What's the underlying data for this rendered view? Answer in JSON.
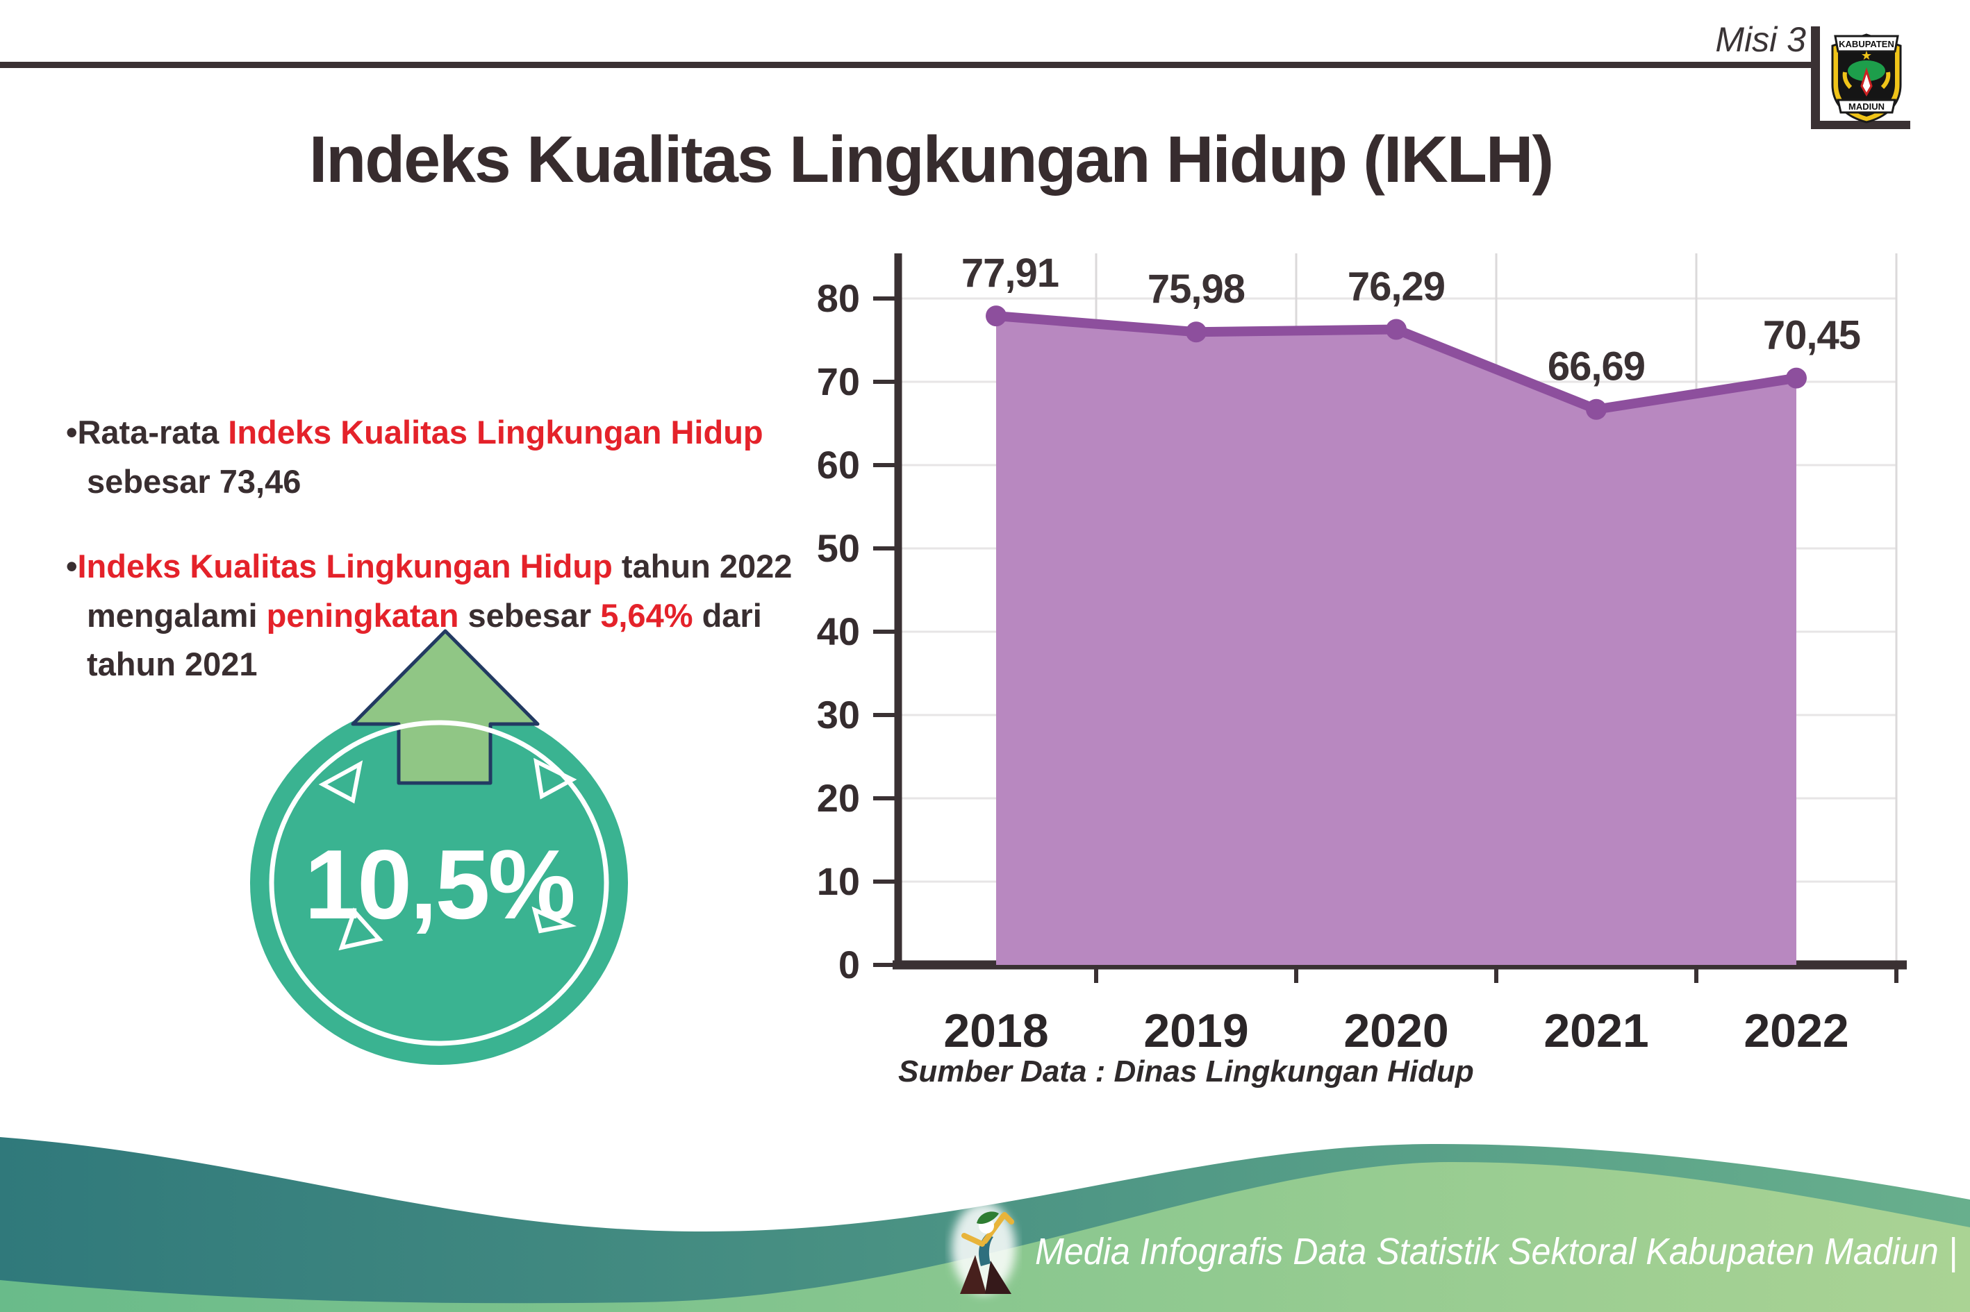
{
  "header": {
    "misi": "Misi 3",
    "title": "Indeks Kualitas Lingkungan Hidup (IKLH)",
    "logo_top": "KABUPATEN",
    "logo_bottom": "MADIUN"
  },
  "bullets": {
    "b1": {
      "p1": "Rata-rata ",
      "p2": "Indeks Kualitas Lingkungan Hidup",
      "p3": " sebesar 73,46"
    },
    "b2": {
      "p1": "Indeks Kualitas Lingkungan Hidup",
      "p2": " tahun 2022 mengalami ",
      "p3": "peningkatan",
      "p4": " sebesar ",
      "p5": "5,64%",
      "p6": " dari tahun 2021"
    }
  },
  "badge": {
    "value": "10,5%"
  },
  "chart_data": {
    "type": "area",
    "title": "Indeks Kualitas Lingkungan Hidup (IKLH)",
    "categories": [
      "2018",
      "2019",
      "2020",
      "2021",
      "2022"
    ],
    "values": [
      77.91,
      75.98,
      76.29,
      66.69,
      70.45
    ],
    "labels": [
      "77,91",
      "75,98",
      "76,29",
      "66,69",
      "70,45"
    ],
    "ylim": [
      0,
      80
    ],
    "ytick_step": 10,
    "xlabel": "",
    "ylabel": "",
    "grid": true,
    "legend": "none",
    "source": "Sumber Data : Dinas Lingkungan Hidup",
    "line_color": "#8d4f9d",
    "fill_color": "#b888c0"
  },
  "footer": {
    "text": "Media Infografis Data Statistik Sektoral Kabupaten Madiun |"
  },
  "colors": {
    "text_dark": "#382d2f",
    "accent_red": "#e4222a",
    "badge_teal": "#3ab391",
    "arrow_green": "#90c685",
    "arrow_outline": "#223a62",
    "axis_dark": "#3a3133",
    "wave_teal_start": "#30797b",
    "wave_teal_end": "#68af8d",
    "wave_green_start": "#69bb8a",
    "wave_green_end": "#aad394"
  }
}
